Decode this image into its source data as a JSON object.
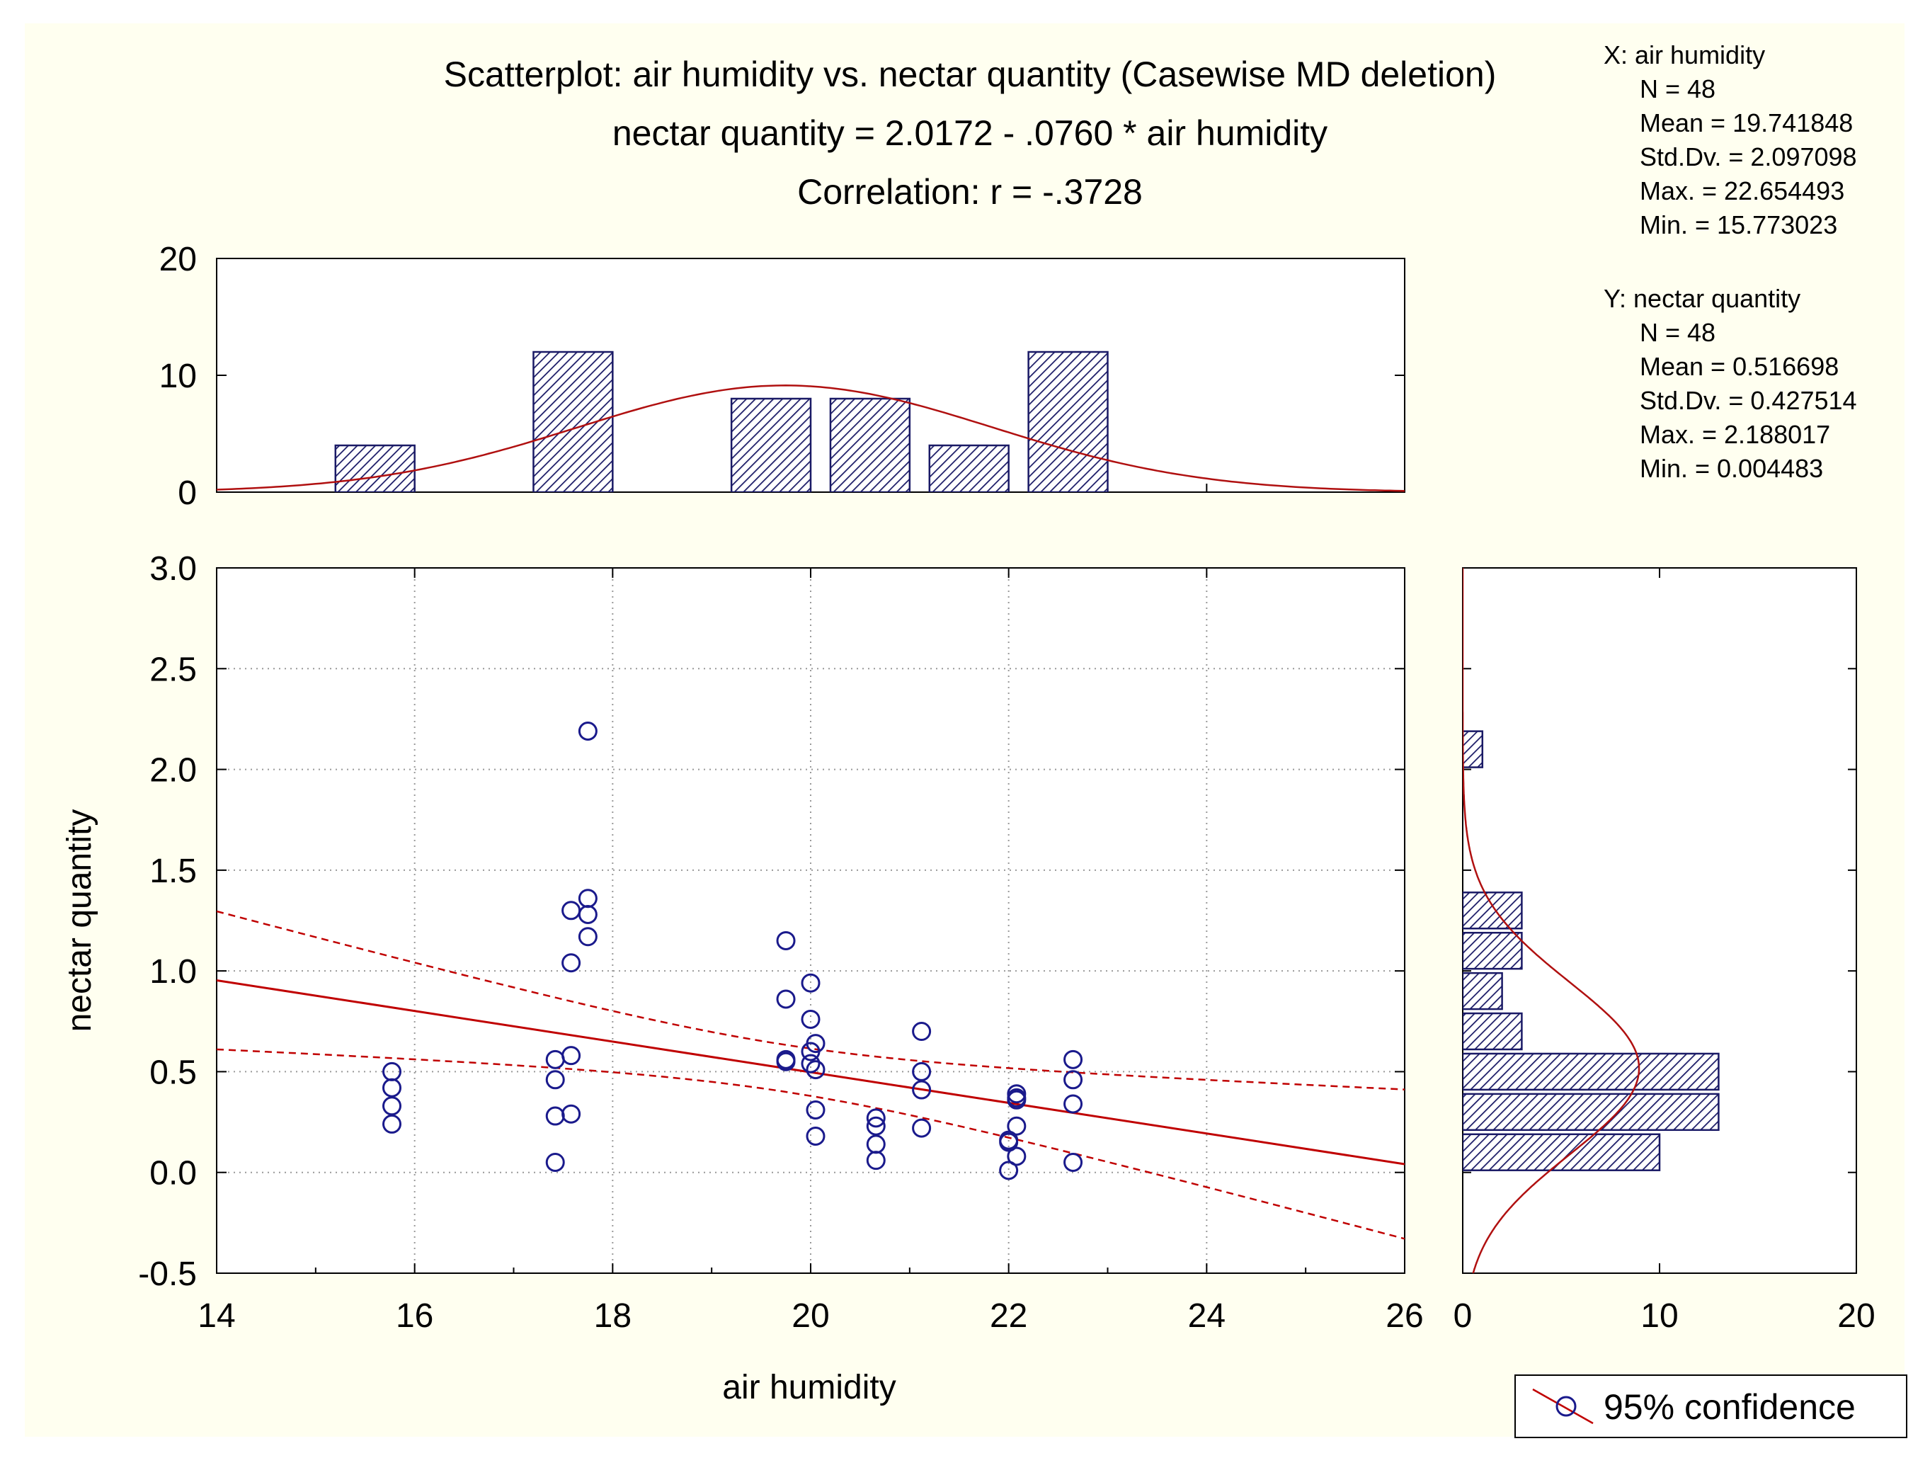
{
  "chart_data": {
    "type": "scatter",
    "title": "Scatterplot: air humidity vs. nectar quantity (Casewise MD deletion)",
    "equation": "nectar quantity = 2.0172 - .0760  * air humidity",
    "correlation": "Correlation: r = -.3728",
    "xlabel": "air humidity",
    "ylabel": "nectar quantity",
    "xlim": [
      14,
      26
    ],
    "ylim": [
      -0.5,
      3.0
    ],
    "x_ticks": [
      "14",
      "16",
      "18",
      "20",
      "22",
      "24",
      "26"
    ],
    "y_ticks": [
      "-0.5",
      "0.0",
      "0.5",
      "1.0",
      "1.5",
      "2.0",
      "2.5",
      "3.0"
    ],
    "regression": {
      "intercept": 2.0172,
      "slope": -0.076
    },
    "confidence_level": 0.95,
    "points": [
      {
        "x": 15.77,
        "y": 0.5
      },
      {
        "x": 15.77,
        "y": 0.42
      },
      {
        "x": 15.77,
        "y": 0.33
      },
      {
        "x": 15.77,
        "y": 0.24
      },
      {
        "x": 17.42,
        "y": 0.56
      },
      {
        "x": 17.42,
        "y": 0.46
      },
      {
        "x": 17.42,
        "y": 0.28
      },
      {
        "x": 17.42,
        "y": 0.05
      },
      {
        "x": 17.58,
        "y": 1.3
      },
      {
        "x": 17.58,
        "y": 1.04
      },
      {
        "x": 17.58,
        "y": 0.58
      },
      {
        "x": 17.58,
        "y": 0.29
      },
      {
        "x": 17.75,
        "y": 2.19
      },
      {
        "x": 17.75,
        "y": 1.36
      },
      {
        "x": 17.75,
        "y": 1.28
      },
      {
        "x": 17.75,
        "y": 1.17
      },
      {
        "x": 19.75,
        "y": 1.15
      },
      {
        "x": 19.75,
        "y": 0.86
      },
      {
        "x": 19.75,
        "y": 0.56
      },
      {
        "x": 19.75,
        "y": 0.55
      },
      {
        "x": 20.0,
        "y": 0.94
      },
      {
        "x": 20.0,
        "y": 0.76
      },
      {
        "x": 20.0,
        "y": 0.6
      },
      {
        "x": 20.0,
        "y": 0.54
      },
      {
        "x": 20.05,
        "y": 0.64
      },
      {
        "x": 20.05,
        "y": 0.51
      },
      {
        "x": 20.05,
        "y": 0.31
      },
      {
        "x": 20.05,
        "y": 0.18
      },
      {
        "x": 20.66,
        "y": 0.27
      },
      {
        "x": 20.66,
        "y": 0.23
      },
      {
        "x": 20.66,
        "y": 0.14
      },
      {
        "x": 20.66,
        "y": 0.06
      },
      {
        "x": 21.12,
        "y": 0.7
      },
      {
        "x": 21.12,
        "y": 0.5
      },
      {
        "x": 21.12,
        "y": 0.41
      },
      {
        "x": 21.12,
        "y": 0.22
      },
      {
        "x": 22.0,
        "y": 0.16
      },
      {
        "x": 22.0,
        "y": 0.15
      },
      {
        "x": 22.0,
        "y": 0.01
      },
      {
        "x": 22.08,
        "y": 0.39
      },
      {
        "x": 22.08,
        "y": 0.36
      },
      {
        "x": 22.08,
        "y": 0.23
      },
      {
        "x": 22.08,
        "y": 0.08
      },
      {
        "x": 22.08,
        "y": 0.37
      },
      {
        "x": 22.65,
        "y": 0.56
      },
      {
        "x": 22.65,
        "y": 0.46
      },
      {
        "x": 22.65,
        "y": 0.34
      },
      {
        "x": 22.65,
        "y": 0.05
      }
    ],
    "x_histogram": {
      "ylim": [
        0,
        20
      ],
      "y_ticks": [
        "0",
        "10",
        "20"
      ],
      "bins": [
        {
          "from": 15.2,
          "to": 16.0,
          "count": 4
        },
        {
          "from": 17.2,
          "to": 18.0,
          "count": 12
        },
        {
          "from": 19.2,
          "to": 20.0,
          "count": 8
        },
        {
          "from": 20.2,
          "to": 21.0,
          "count": 8
        },
        {
          "from": 21.2,
          "to": 22.0,
          "count": 4
        },
        {
          "from": 22.2,
          "to": 23.0,
          "count": 12
        }
      ]
    },
    "y_histogram": {
      "xlim": [
        0,
        20
      ],
      "x_ticks": [
        "0",
        "10",
        "20"
      ],
      "bins": [
        {
          "from": 2.0,
          "to": 2.2,
          "count": 1
        },
        {
          "from": 1.2,
          "to": 1.4,
          "count": 3
        },
        {
          "from": 1.0,
          "to": 1.2,
          "count": 3
        },
        {
          "from": 0.8,
          "to": 1.0,
          "count": 2
        },
        {
          "from": 0.6,
          "to": 0.8,
          "count": 3
        },
        {
          "from": 0.4,
          "to": 0.6,
          "count": 13
        },
        {
          "from": 0.2,
          "to": 0.4,
          "count": 13
        },
        {
          "from": 0.0,
          "to": 0.2,
          "count": 10
        }
      ]
    },
    "legend": "95% confidence",
    "colors": {
      "points": "#1a1a8c",
      "fit": "#c00000",
      "bars": "#1a1a66"
    }
  },
  "stats": {
    "x": {
      "header": "X:  air humidity",
      "lines": [
        "N = 48",
        "Mean = 19.741848",
        "Std.Dv. = 2.097098",
        "Max. = 22.654493",
        "Min. = 15.773023"
      ],
      "mean": 19.741848,
      "sd": 2.097098
    },
    "y": {
      "header": "Y:  nectar quantity",
      "lines": [
        "N = 48",
        "Mean = 0.516698",
        "Std.Dv. = 0.427514",
        "Max. = 2.188017",
        "Min. = 0.004483"
      ],
      "mean": 0.516698,
      "sd": 0.427514
    }
  }
}
